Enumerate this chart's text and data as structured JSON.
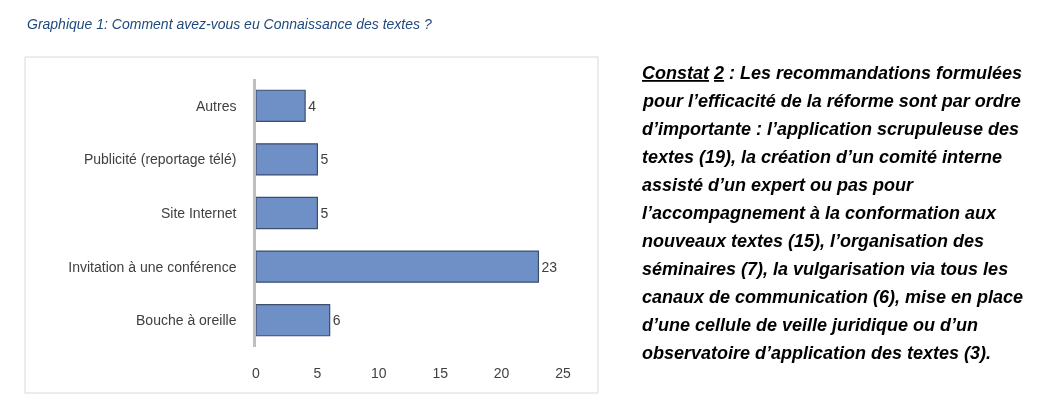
{
  "chart_data": [
    {
      "type": "bar",
      "title": "Graphique 1: Comment avez-vous eu Connaissance des textes ?",
      "orientation": "horizontal",
      "categories": [
        "Autres",
        "Publicité (reportage télé)",
        "Site Internet",
        "Invitation à une conférence",
        "Bouche à oreille"
      ],
      "values": [
        4,
        5,
        5,
        23,
        6
      ],
      "color": "#6f8fc7",
      "data_labels": true,
      "xlim": [
        0,
        25
      ],
      "xticks": [
        0,
        5,
        10,
        15,
        20,
        25
      ],
      "grid": false
    },
    {
      "type": "other",
      "title": "Constat 2",
      "annotations": [
        ": Les recommandations formulées pour l’efficacité de la réforme sont par ordre d’importante : l’application scrupuleuse des textes (19), la création d’un comité interne assisté d’un expert ou pas pour l’accompagnement à la conformation aux nouveaux textes (15), l’organisation des séminaires (7), la vulgarisation via tous les canaux de communication (6), mise en place d’une cellule de veille juridique ou d’un observatoire d’application des textes (3)."
      ]
    }
  ]
}
